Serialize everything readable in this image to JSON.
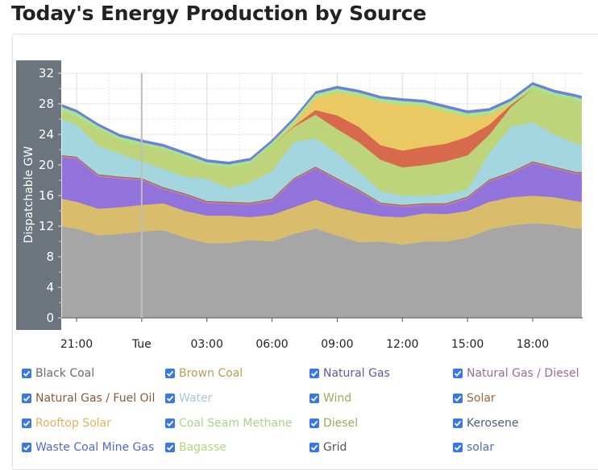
{
  "title": "Today's Energy Production by Source",
  "chart_data": {
    "type": "area",
    "stacked": true,
    "ylabel": "Dispatchable GW",
    "xlabel": "",
    "ylim": [
      0,
      32
    ],
    "yticks": [
      "0",
      "4",
      "8",
      "12",
      "16",
      "20",
      "24",
      "28",
      "32"
    ],
    "xticks": [
      "21:00",
      "Tue",
      "03:00",
      "06:00",
      "09:00",
      "12:00",
      "15:00",
      "18:00"
    ],
    "grid": true,
    "legend_position": "bottom",
    "axis_band_color": "#6c757d",
    "times": [
      "20:20",
      "21:00",
      "22:00",
      "23:00",
      "00:00",
      "01:00",
      "02:00",
      "03:00",
      "04:00",
      "05:00",
      "06:00",
      "07:00",
      "08:00",
      "09:00",
      "10:00",
      "11:00",
      "12:00",
      "13:00",
      "14:00",
      "15:00",
      "16:00",
      "17:00",
      "18:00",
      "19:00",
      "20:00",
      "20:15"
    ],
    "series": [
      {
        "name": "Black Coal",
        "color": "#a6a6a6",
        "text_color": "#6b6b6b",
        "values": [
          12,
          11.7,
          10.8,
          11,
          11.3,
          11.5,
          10.5,
          9.8,
          9.8,
          10.2,
          10,
          11,
          11.7,
          10.8,
          9.9,
          10,
          9.6,
          10,
          10,
          10.5,
          11.6,
          12.1,
          12.4,
          12.2,
          11.7,
          11.7
        ]
      },
      {
        "name": "Brown Coal",
        "color": "#d9bd6d",
        "text_color": "#b59c58",
        "values": [
          3.6,
          3.5,
          3.5,
          3.5,
          3.5,
          3.5,
          3.5,
          3.6,
          3.6,
          3.0,
          3.5,
          3.5,
          3.8,
          3.7,
          3.9,
          3.3,
          3.6,
          3.7,
          3.6,
          3.5,
          3.6,
          3.7,
          3.6,
          3.6,
          3.6,
          3.5
        ]
      },
      {
        "name": "Natural Gas",
        "color": "#9273dc",
        "text_color": "#5f5aa8",
        "values": [
          5.4,
          5.6,
          4.2,
          3.7,
          3.2,
          1.8,
          2.0,
          1.6,
          1.5,
          1.6,
          1.8,
          3.5,
          4.0,
          3.5,
          2.7,
          1.5,
          1.3,
          1.0,
          1.1,
          1.6,
          2.6,
          3.0,
          4.2,
          3.7,
          3.5,
          3.6
        ]
      },
      {
        "name": "Natural Gas / Diesel",
        "color": "#c0809e",
        "text_color": "#9a6a9a",
        "values": [
          0.2,
          0.2,
          0.2,
          0.2,
          0.2,
          0.2,
          0.2,
          0.2,
          0.2,
          0.2,
          0.2,
          0.2,
          0.2,
          0.2,
          0.2,
          0.2,
          0.2,
          0.2,
          0.2,
          0.2,
          0.2,
          0.2,
          0.2,
          0.2,
          0.2,
          0.2
        ]
      },
      {
        "name": "Natural Gas / Fuel Oil",
        "color": "#9a5c3c",
        "text_color": "#8a5a3a",
        "values": [
          0.1,
          0.1,
          0.1,
          0.1,
          0.1,
          0.1,
          0.1,
          0.1,
          0.1,
          0.1,
          0.1,
          0.1,
          0.1,
          0.1,
          0.1,
          0.1,
          0.1,
          0.1,
          0.1,
          0.1,
          0.1,
          0.1,
          0.1,
          0.1,
          0.1,
          0.1
        ]
      },
      {
        "name": "Water",
        "color": "#a3d6df",
        "text_color": "#a9c6d6",
        "values": [
          4.7,
          4.2,
          3.7,
          3.0,
          2.2,
          2.4,
          2.2,
          2.9,
          1.8,
          2.6,
          3.6,
          4.7,
          3.7,
          3.3,
          2.4,
          1.5,
          1.2,
          1.0,
          1.2,
          0.9,
          3.5,
          5.9,
          5.1,
          4.2,
          3.7,
          3.5
        ]
      },
      {
        "name": "Wind",
        "color": "#bdd47b",
        "text_color": "#9aae58",
        "values": [
          1.0,
          1.0,
          2.1,
          1.8,
          2.1,
          2.5,
          2.5,
          1.8,
          2.7,
          2.5,
          3.4,
          2.0,
          3.1,
          3.1,
          3.8,
          4.1,
          3.7,
          4.0,
          4.3,
          4.5,
          2.4,
          2.6,
          4.4,
          5.0,
          5.6,
          5.6
        ]
      },
      {
        "name": "Solar",
        "color": "#d7694d",
        "text_color": "#a5653a",
        "values": [
          0,
          0,
          0,
          0,
          0,
          0,
          0,
          0,
          0,
          0,
          0,
          0.1,
          0.6,
          1.8,
          2.0,
          1.9,
          2.2,
          2.4,
          2.3,
          2.4,
          1.3,
          0.3,
          0,
          0,
          0,
          0
        ]
      },
      {
        "name": "Rooftop Solar",
        "color": "#eac862",
        "text_color": "#e0b25e",
        "values": [
          0,
          0,
          0,
          0,
          0,
          0,
          0,
          0,
          0,
          0,
          0,
          0.3,
          1.6,
          3.0,
          4.0,
          5.6,
          6.0,
          5.3,
          4.2,
          2.6,
          1.3,
          0,
          0,
          0,
          0,
          0
        ]
      },
      {
        "name": "Coal Seam Methane",
        "color": "#a8e390",
        "text_color": "#a6d68c",
        "values": [
          0.6,
          0.6,
          0.5,
          0.4,
          0.4,
          0.4,
          0.4,
          0.4,
          0.4,
          0.4,
          0.4,
          0.5,
          0.5,
          0.5,
          0.5,
          0.5,
          0.5,
          0.5,
          0.5,
          0.5,
          0.5,
          0.5,
          0.5,
          0.5,
          0.5,
          0.5
        ]
      },
      {
        "name": "Diesel",
        "color": "#9fb060",
        "text_color": "#9aae58",
        "values": [
          0,
          0,
          0,
          0,
          0,
          0,
          0,
          0,
          0,
          0,
          0,
          0,
          0,
          0,
          0,
          0,
          0,
          0,
          0,
          0,
          0,
          0,
          0,
          0,
          0,
          0
        ]
      },
      {
        "name": "Kerosene",
        "color": "#4a5f8c",
        "text_color": "#4a5f8c",
        "values": [
          0,
          0,
          0,
          0,
          0,
          0,
          0,
          0,
          0,
          0,
          0,
          0,
          0,
          0,
          0,
          0,
          0,
          0,
          0,
          0,
          0,
          0,
          0,
          0,
          0,
          0
        ]
      },
      {
        "name": "Waste Coal Mine Gas",
        "color": "#6b80dc",
        "text_color": "#5468cf",
        "values": [
          0.3,
          0.3,
          0.3,
          0.3,
          0.3,
          0.3,
          0.3,
          0.3,
          0.3,
          0.3,
          0.3,
          0.3,
          0.3,
          0.3,
          0.3,
          0.3,
          0.3,
          0.3,
          0.3,
          0.3,
          0.3,
          0.3,
          0.3,
          0.3,
          0.3,
          0.3
        ]
      },
      {
        "name": "Bagasse",
        "color": "#b7e08a",
        "text_color": "#b3d97f",
        "values": [
          0,
          0,
          0,
          0,
          0,
          0,
          0,
          0,
          0,
          0,
          0,
          0,
          0,
          0,
          0,
          0,
          0,
          0,
          0,
          0,
          0,
          0,
          0,
          0,
          0,
          0
        ]
      },
      {
        "name": "Grid",
        "color": "#666666",
        "text_color": "#555555",
        "values": [
          0,
          0,
          0,
          0,
          0,
          0,
          0,
          0,
          0,
          0,
          0,
          0,
          0,
          0,
          0,
          0,
          0,
          0,
          0,
          0,
          0,
          0,
          0,
          0,
          0,
          0
        ]
      },
      {
        "name": "solar",
        "color": "#4a72a8",
        "text_color": "#4a72a8",
        "values": [
          0,
          0,
          0,
          0,
          0,
          0,
          0,
          0,
          0,
          0,
          0,
          0,
          0,
          0,
          0,
          0,
          0,
          0,
          0,
          0,
          0,
          0,
          0,
          0,
          0,
          0
        ]
      }
    ]
  }
}
